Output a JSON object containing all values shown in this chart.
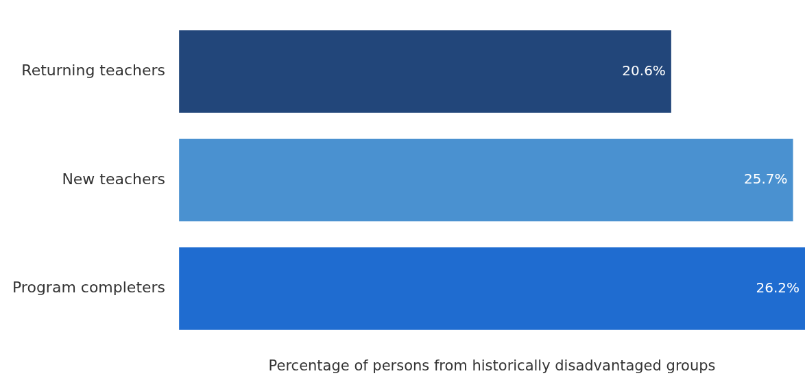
{
  "chart_data": {
    "type": "bar",
    "orientation": "horizontal",
    "xlabel": "Percentage of persons from historically disadvantaged groups",
    "categories": [
      "Returning teachers",
      "New teachers",
      "Program completers"
    ],
    "values": [
      20.6,
      25.7,
      26.2
    ],
    "colors": [
      "#22467a",
      "#4a91d0",
      "#1f6cd0"
    ],
    "data_labels": true,
    "value_labels": [
      "20.6%",
      "25.7%",
      "26.2%"
    ],
    "tick_labels": "y",
    "grid": false,
    "legend": false
  }
}
